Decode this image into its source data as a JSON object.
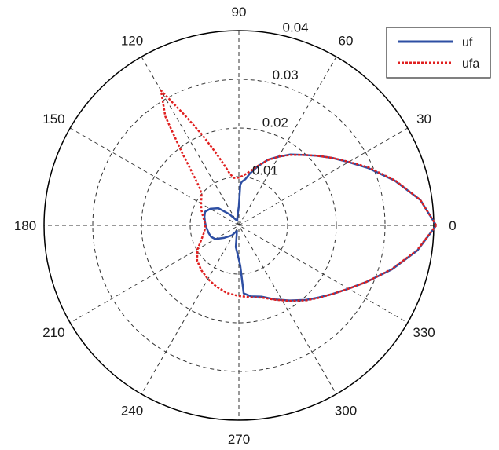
{
  "chart_data": {
    "type": "polar-line",
    "title": "",
    "angle_unit": "degrees",
    "r_max": 0.04,
    "r_ticks": [
      0.01,
      0.02,
      0.03,
      0.04
    ],
    "r_tick_labels": [
      "0.01",
      "0.02",
      "0.03",
      "0.04"
    ],
    "theta_ticks": [
      0,
      30,
      60,
      90,
      120,
      150,
      180,
      210,
      240,
      270,
      300,
      330
    ],
    "theta_tick_labels": [
      "0",
      "30",
      "60",
      "90",
      "120",
      "150",
      "180",
      "210",
      "240",
      "270",
      "300",
      "330"
    ],
    "grid": true,
    "legend_position": "top-right",
    "series": [
      {
        "name": "uf",
        "color": "#2e4fa3",
        "style": "solid",
        "theta": [
          0,
          8,
          16,
          24,
          30,
          36,
          42,
          48,
          54,
          60,
          66,
          72,
          78,
          82,
          86,
          88,
          90,
          100,
          110,
          130,
          140,
          150,
          158,
          166,
          174,
          180,
          186,
          194,
          202,
          210,
          220,
          235,
          250,
          262,
          270,
          272,
          274,
          280,
          288,
          296,
          304,
          312,
          318,
          324,
          330,
          336,
          344,
          352,
          360
        ],
        "r": [
          0.0405,
          0.0376,
          0.0333,
          0.029,
          0.026,
          0.0236,
          0.0214,
          0.0195,
          0.018,
          0.0163,
          0.0148,
          0.0128,
          0.0109,
          0.0096,
          0.009,
          0.0084,
          0.004,
          0.0018,
          0.001,
          0.003,
          0.0055,
          0.0068,
          0.0075,
          0.0073,
          0.007,
          0.0068,
          0.0066,
          0.0064,
          0.0062,
          0.0056,
          0.004,
          0.0025,
          0.0012,
          0.0045,
          0.007,
          0.0083,
          0.014,
          0.0148,
          0.0154,
          0.0169,
          0.0186,
          0.0206,
          0.0221,
          0.0239,
          0.026,
          0.0286,
          0.0327,
          0.037,
          0.0405
        ]
      },
      {
        "name": "ufa",
        "color": "#e02020",
        "style": "dotted",
        "theta": [
          0,
          8,
          16,
          24,
          30,
          36,
          42,
          48,
          54,
          60,
          66,
          72,
          78,
          84,
          90,
          96,
          100,
          104,
          108,
          112,
          116,
          120,
          124,
          128,
          132,
          136,
          140,
          144,
          150,
          158,
          166,
          174,
          180,
          186,
          194,
          202,
          210,
          220,
          230,
          240,
          250,
          260,
          270,
          280,
          288,
          296,
          304,
          312,
          318,
          324,
          330,
          336,
          344,
          352,
          360
        ],
        "r": [
          0.0405,
          0.0376,
          0.0334,
          0.0292,
          0.0261,
          0.0236,
          0.0214,
          0.0195,
          0.0179,
          0.0163,
          0.0147,
          0.0129,
          0.0114,
          0.0104,
          0.0098,
          0.0098,
          0.0108,
          0.013,
          0.016,
          0.02,
          0.025,
          0.032,
          0.027,
          0.019,
          0.014,
          0.0112,
          0.01,
          0.0095,
          0.009,
          0.0083,
          0.0076,
          0.0071,
          0.0069,
          0.007,
          0.0075,
          0.0084,
          0.0098,
          0.0112,
          0.012,
          0.0127,
          0.0134,
          0.0141,
          0.0145,
          0.015,
          0.0156,
          0.017,
          0.0187,
          0.0207,
          0.0222,
          0.0239,
          0.026,
          0.0286,
          0.0326,
          0.0369,
          0.0405
        ]
      }
    ]
  }
}
